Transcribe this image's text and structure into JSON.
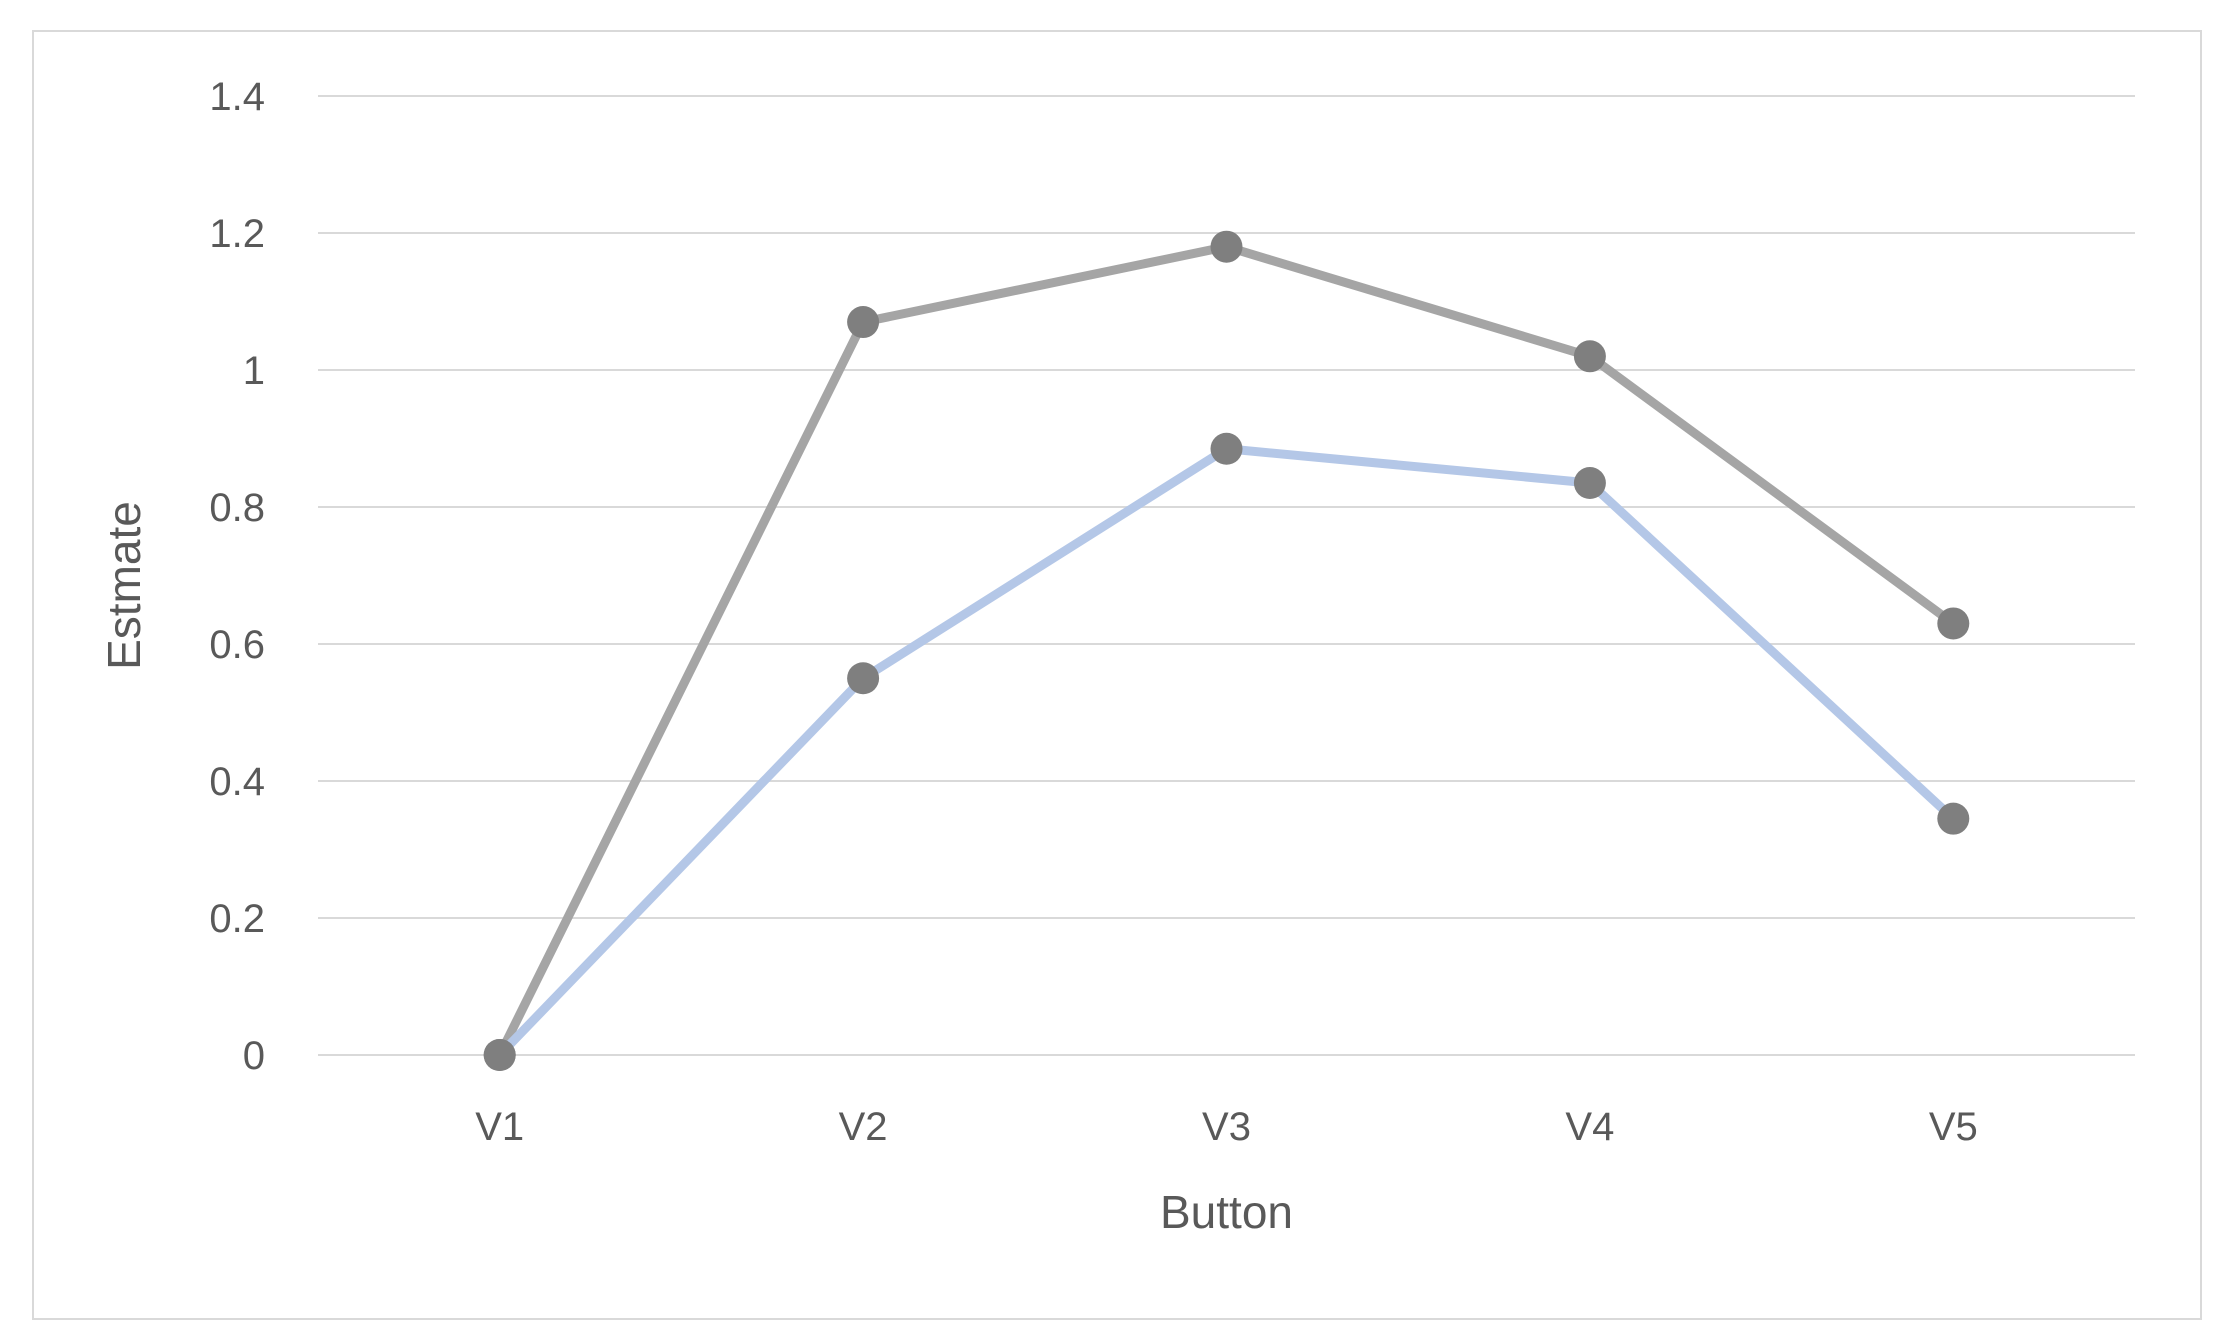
{
  "chart_data": {
    "type": "line",
    "title": "",
    "xlabel": "Button",
    "ylabel": "Estmate",
    "categories": [
      "V1",
      "V2",
      "V3",
      "V4",
      "V5"
    ],
    "ylim": [
      0,
      1.4
    ],
    "yticks": [
      0,
      0.2,
      0.4,
      0.6,
      0.8,
      1,
      1.2,
      1.4
    ],
    "ytick_labels": [
      "0",
      "0.2",
      "0.4",
      "0.6",
      "0.8",
      "1",
      "1.2",
      "1.4"
    ],
    "grid": true,
    "legend": "none",
    "series": [
      {
        "values": [
          0,
          1.07,
          1.18,
          1.02,
          0.63
        ],
        "line_color": "#a5a5a5",
        "marker_color": "#7f7f7f"
      },
      {
        "values": [
          0,
          0.55,
          0.885,
          0.835,
          0.345
        ],
        "line_color": "#b4c7e7",
        "marker_color": "#7f7f7f"
      }
    ]
  },
  "colors": {
    "gridline": "#d9d9d9",
    "text": "#595959",
    "border": "#d9d9d9"
  }
}
